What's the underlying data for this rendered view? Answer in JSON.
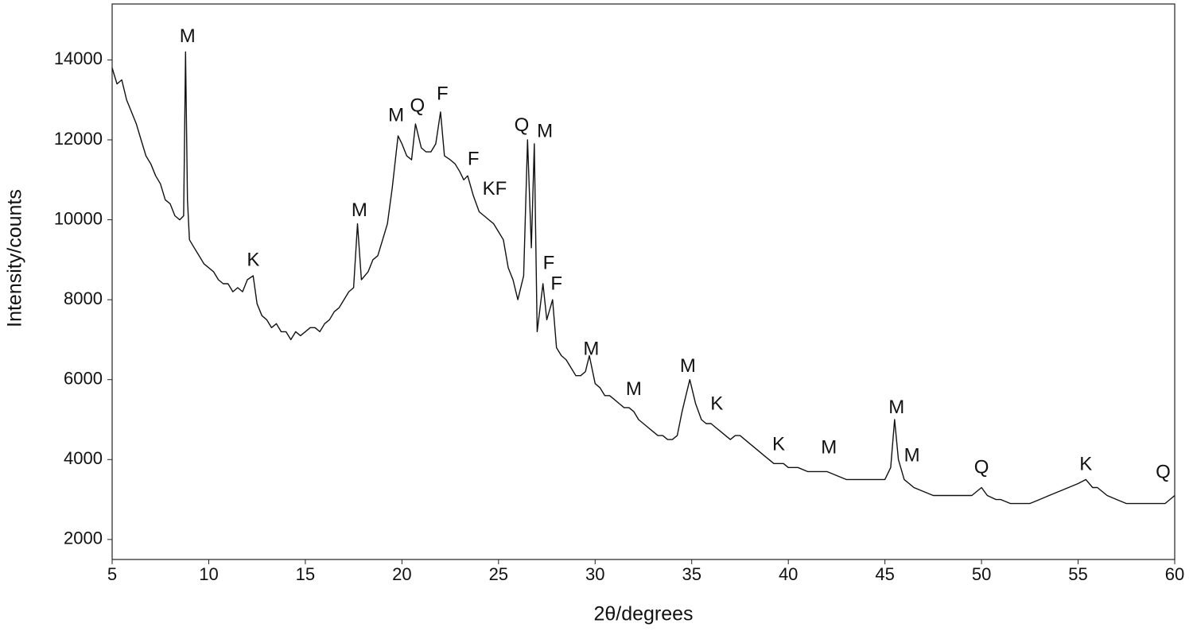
{
  "chart_data": {
    "type": "line",
    "x_label": "2θ/degrees",
    "y_label": "Intensity/counts",
    "xlim": [
      5,
      60
    ],
    "xticks": [
      5,
      10,
      15,
      20,
      25,
      30,
      35,
      40,
      45,
      50,
      55,
      60
    ],
    "ylim": [
      1500,
      15400
    ],
    "yticks": [
      2000,
      4000,
      6000,
      8000,
      10000,
      12000,
      14000
    ],
    "color": "#111111",
    "x": [
      5,
      5.25,
      5.5,
      5.75,
      6,
      6.25,
      6.5,
      6.75,
      7,
      7.25,
      7.5,
      7.75,
      8,
      8.25,
      8.5,
      8.7,
      8.8,
      8.9,
      9,
      9.25,
      9.5,
      9.75,
      10,
      10.25,
      10.5,
      10.75,
      11,
      11.25,
      11.5,
      11.75,
      12,
      12.3,
      12.5,
      12.75,
      13,
      13.25,
      13.5,
      13.75,
      14,
      14.25,
      14.5,
      14.75,
      15,
      15.25,
      15.5,
      15.75,
      16,
      16.25,
      16.5,
      16.75,
      17,
      17.25,
      17.5,
      17.7,
      17.9,
      18.25,
      18.5,
      18.75,
      19,
      19.25,
      19.5,
      19.8,
      20,
      20.25,
      20.5,
      20.7,
      21,
      21.25,
      21.5,
      21.75,
      22,
      22.2,
      22.5,
      22.75,
      23,
      23.2,
      23.4,
      23.7,
      24,
      24.25,
      24.5,
      24.75,
      25,
      25.25,
      25.5,
      25.75,
      26,
      26.3,
      26.5,
      26.7,
      26.85,
      27,
      27.3,
      27.5,
      27.8,
      28,
      28.25,
      28.5,
      28.75,
      29,
      29.25,
      29.5,
      29.7,
      30,
      30.25,
      30.5,
      30.75,
      31,
      31.25,
      31.5,
      31.75,
      32,
      32.25,
      32.5,
      32.75,
      33,
      33.25,
      33.5,
      33.75,
      34,
      34.25,
      34.5,
      34.7,
      34.9,
      35.2,
      35.5,
      35.75,
      36,
      36.25,
      36.5,
      36.75,
      37,
      37.25,
      37.5,
      37.75,
      38,
      38.25,
      38.5,
      38.75,
      39,
      39.25,
      39.5,
      39.75,
      40,
      40.5,
      41,
      41.5,
      42,
      42.5,
      43,
      43.5,
      44,
      44.5,
      45,
      45.3,
      45.5,
      45.7,
      46,
      46.5,
      47,
      47.5,
      48,
      48.5,
      49,
      49.5,
      50,
      50.3,
      50.75,
      51,
      51.5,
      52,
      52.5,
      53,
      53.5,
      54,
      54.5,
      55,
      55.4,
      55.75,
      56,
      56.5,
      57,
      57.5,
      58,
      58.5,
      59,
      59.5,
      60
    ],
    "values": [
      13800,
      13400,
      13500,
      13000,
      12700,
      12400,
      12000,
      11600,
      11400,
      11100,
      10900,
      10500,
      10400,
      10100,
      10000,
      10100,
      14200,
      10500,
      9500,
      9300,
      9100,
      8900,
      8800,
      8700,
      8500,
      8400,
      8400,
      8200,
      8300,
      8200,
      8500,
      8600,
      7900,
      7600,
      7500,
      7300,
      7400,
      7200,
      7200,
      7000,
      7200,
      7100,
      7200,
      7300,
      7300,
      7200,
      7400,
      7500,
      7700,
      7800,
      8000,
      8200,
      8300,
      9900,
      8500,
      8700,
      9000,
      9100,
      9500,
      9900,
      10800,
      12100,
      11900,
      11600,
      11500,
      12400,
      11800,
      11700,
      11700,
      11900,
      12700,
      11600,
      11500,
      11400,
      11200,
      11000,
      11100,
      10600,
      10200,
      10100,
      10000,
      9900,
      9700,
      9500,
      8800,
      8500,
      8000,
      8600,
      12000,
      9300,
      11900,
      7200,
      8400,
      7500,
      8000,
      6800,
      6600,
      6500,
      6300,
      6100,
      6100,
      6200,
      6600,
      5900,
      5800,
      5600,
      5600,
      5500,
      5400,
      5300,
      5300,
      5200,
      5000,
      4900,
      4800,
      4700,
      4600,
      4600,
      4500,
      4500,
      4600,
      5200,
      5600,
      6000,
      5400,
      5000,
      4900,
      4900,
      4800,
      4700,
      4600,
      4500,
      4600,
      4600,
      4500,
      4400,
      4300,
      4200,
      4100,
      4000,
      3900,
      3900,
      3900,
      3800,
      3800,
      3700,
      3700,
      3700,
      3600,
      3500,
      3500,
      3500,
      3500,
      3500,
      3800,
      5000,
      4000,
      3500,
      3300,
      3200,
      3100,
      3100,
      3100,
      3100,
      3100,
      3300,
      3100,
      3000,
      3000,
      2900,
      2900,
      2900,
      3000,
      3100,
      3200,
      3300,
      3400,
      3500,
      3300,
      3300,
      3100,
      3000,
      2900,
      2900,
      2900,
      2900,
      2900,
      3100
    ],
    "annotations": [
      {
        "text": "M",
        "x": 8.9,
        "y": 14570
      },
      {
        "text": "K",
        "x": 12.3,
        "y": 8970
      },
      {
        "text": "M",
        "x": 17.8,
        "y": 10220
      },
      {
        "text": "M",
        "x": 19.7,
        "y": 12590
      },
      {
        "text": "Q",
        "x": 20.8,
        "y": 12830
      },
      {
        "text": "F",
        "x": 22.1,
        "y": 13130
      },
      {
        "text": "F",
        "x": 23.7,
        "y": 11500
      },
      {
        "text": "KF",
        "x": 24.8,
        "y": 10750
      },
      {
        "text": "Q",
        "x": 26.2,
        "y": 12340
      },
      {
        "text": "M",
        "x": 27.4,
        "y": 12200
      },
      {
        "text": "F",
        "x": 27.6,
        "y": 8890
      },
      {
        "text": "F",
        "x": 28.0,
        "y": 8380
      },
      {
        "text": "M",
        "x": 29.8,
        "y": 6750
      },
      {
        "text": "M",
        "x": 32.0,
        "y": 5740
      },
      {
        "text": "M",
        "x": 34.8,
        "y": 6320
      },
      {
        "text": "K",
        "x": 36.3,
        "y": 5370
      },
      {
        "text": "K",
        "x": 39.5,
        "y": 4360
      },
      {
        "text": "M",
        "x": 42.1,
        "y": 4280
      },
      {
        "text": "M",
        "x": 45.6,
        "y": 5290
      },
      {
        "text": "M",
        "x": 46.4,
        "y": 4080
      },
      {
        "text": "Q",
        "x": 50.0,
        "y": 3780
      },
      {
        "text": "K",
        "x": 55.4,
        "y": 3860
      },
      {
        "text": "Q",
        "x": 59.4,
        "y": 3660
      }
    ]
  }
}
